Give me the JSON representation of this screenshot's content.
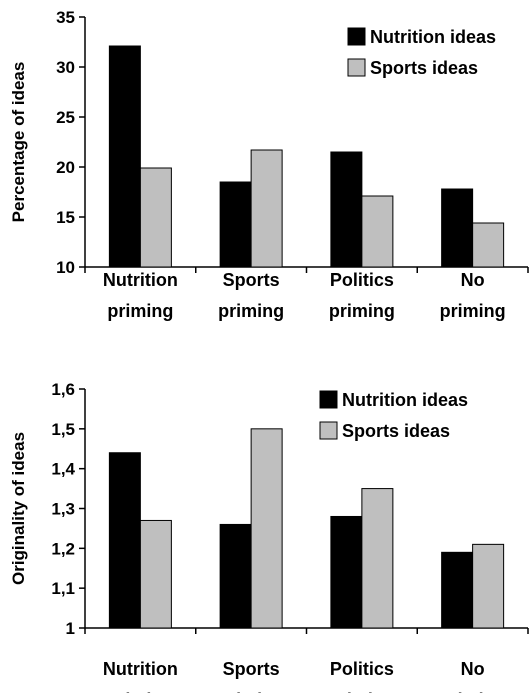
{
  "colors": {
    "nutrition": "#000000",
    "sports": "#bfbfbf"
  },
  "chart_data": [
    {
      "type": "bar",
      "categories": [
        "Nutrition priming",
        "Sports priming",
        "Politics priming",
        "No priming"
      ],
      "category_lines": [
        [
          "Nutrition",
          "priming"
        ],
        [
          "Sports",
          "priming"
        ],
        [
          "Politics",
          "priming"
        ],
        [
          "No",
          "priming"
        ]
      ],
      "series": [
        {
          "name": "Nutrition ideas",
          "values": [
            32.1,
            18.5,
            21.5,
            17.8
          ]
        },
        {
          "name": "Sports ideas",
          "values": [
            19.9,
            21.7,
            17.1,
            14.4
          ]
        }
      ],
      "ylabel": "Percentage of ideas",
      "xlabel": "",
      "ylim": [
        10,
        35
      ],
      "yticks": [
        "10",
        "15",
        "20",
        "25",
        "30",
        "35"
      ],
      "grid": false,
      "legend_position": "top-right"
    },
    {
      "type": "bar",
      "categories": [
        "Nutrition priming",
        "Sports priming",
        "Politics priming",
        "No priming"
      ],
      "category_lines": [
        [
          "Nutrition",
          "priming"
        ],
        [
          "Sports",
          "priming"
        ],
        [
          "Politics",
          "priming"
        ],
        [
          "No",
          "priming"
        ]
      ],
      "series": [
        {
          "name": "Nutrition ideas",
          "values": [
            1.44,
            1.26,
            1.28,
            1.19
          ]
        },
        {
          "name": "Sports ideas",
          "values": [
            1.27,
            1.5,
            1.35,
            1.21
          ]
        }
      ],
      "ylabel": "Originality of ideas",
      "xlabel": "",
      "ylim": [
        1,
        1.6
      ],
      "yticks": [
        "1",
        "1,1",
        "1,2",
        "1,3",
        "1,4",
        "1,5",
        "1,6"
      ],
      "grid": false,
      "legend_position": "top-right"
    }
  ]
}
